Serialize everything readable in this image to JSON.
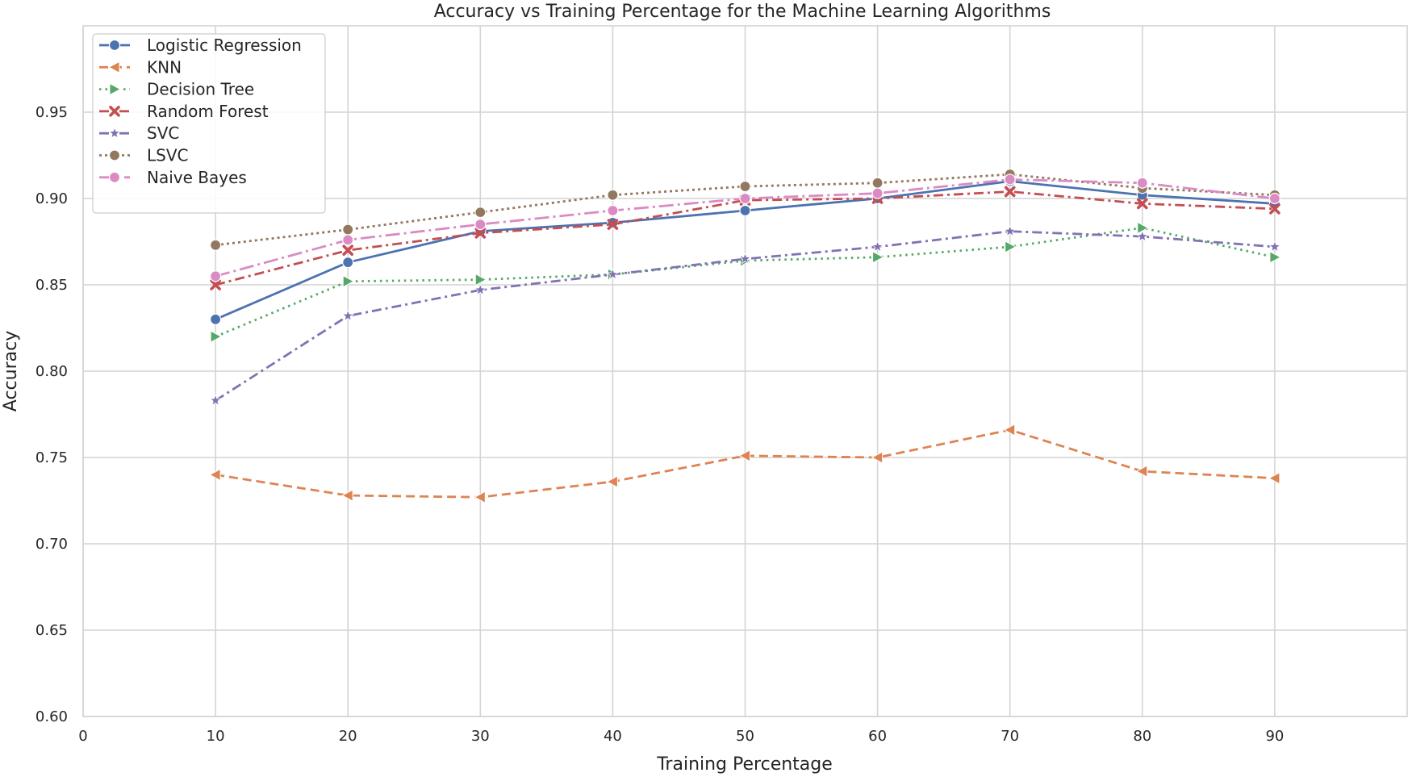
{
  "chart_data": {
    "type": "line",
    "title": "Accuracy vs Training Percentage for the Machine Learning Algorithms",
    "xlabel": "Training Percentage",
    "ylabel": "Accuracy",
    "xlim": [
      0,
      100
    ],
    "ylim": [
      0.6,
      1.0
    ],
    "xticks": [
      0,
      10,
      20,
      30,
      40,
      50,
      60,
      70,
      80,
      90
    ],
    "yticks": [
      0.6,
      0.65,
      0.7,
      0.75,
      0.8,
      0.85,
      0.9,
      0.95
    ],
    "ytick_labels": [
      "0.60",
      "0.65",
      "0.70",
      "0.75",
      "0.80",
      "0.85",
      "0.90",
      "0.95"
    ],
    "grid": true,
    "legend_position": "top-left",
    "x": [
      10,
      20,
      30,
      40,
      50,
      60,
      70,
      80,
      90
    ],
    "series": [
      {
        "name": "Logistic Regression",
        "color": "#4c72b0",
        "dash": "solid",
        "marker": "circle",
        "values": [
          0.83,
          0.863,
          0.881,
          0.886,
          0.893,
          0.9,
          0.91,
          0.902,
          0.897
        ]
      },
      {
        "name": "KNN",
        "color": "#dd8452",
        "dash": "dashed",
        "marker": "triangle-left",
        "values": [
          0.74,
          0.728,
          0.727,
          0.736,
          0.751,
          0.75,
          0.766,
          0.742,
          0.738
        ]
      },
      {
        "name": "Decision Tree",
        "color": "#55a868",
        "dash": "dotted",
        "marker": "triangle-right",
        "values": [
          0.82,
          0.852,
          0.853,
          0.856,
          0.864,
          0.866,
          0.872,
          0.883,
          0.866
        ]
      },
      {
        "name": "Random Forest",
        "color": "#c44e52",
        "dash": "dashdot",
        "marker": "x",
        "values": [
          0.85,
          0.87,
          0.88,
          0.885,
          0.899,
          0.9,
          0.904,
          0.897,
          0.894
        ]
      },
      {
        "name": "SVC",
        "color": "#8172b3",
        "dash": "dashdot",
        "marker": "star",
        "values": [
          0.783,
          0.832,
          0.847,
          0.856,
          0.865,
          0.872,
          0.881,
          0.878,
          0.872
        ]
      },
      {
        "name": "LSVC",
        "color": "#937860",
        "dash": "densedot",
        "marker": "circle",
        "values": [
          0.873,
          0.882,
          0.892,
          0.902,
          0.907,
          0.909,
          0.914,
          0.906,
          0.902
        ]
      },
      {
        "name": "Naive Bayes",
        "color": "#da8bc3",
        "dash": "longdashdot",
        "marker": "circle",
        "values": [
          0.855,
          0.876,
          0.885,
          0.893,
          0.9,
          0.903,
          0.911,
          0.909,
          0.9
        ]
      }
    ]
  }
}
